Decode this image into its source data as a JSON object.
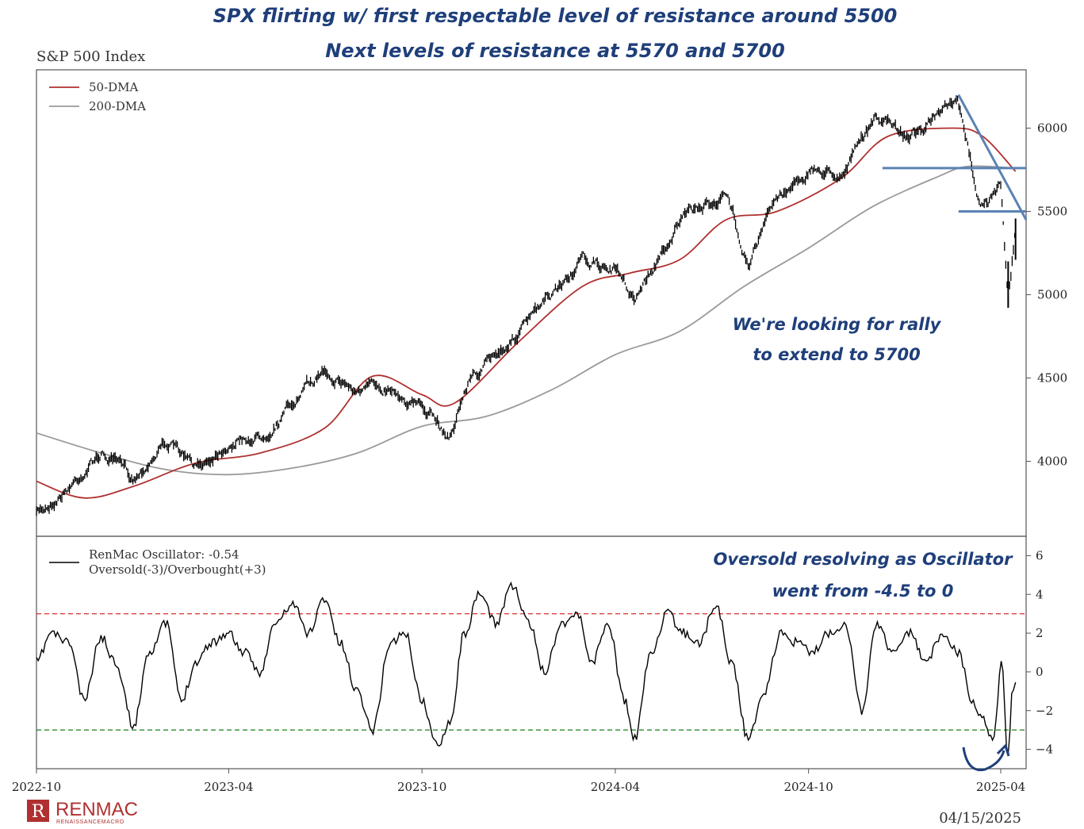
{
  "headline": {
    "line1": "SPX flirting w/ first respectable level of resistance around 5500",
    "line2": "Next levels of resistance at 5570 and 5700"
  },
  "chart_data": [
    {
      "type": "line",
      "title": "S&P 500 Index",
      "x_range": [
        "2022-10-01",
        "2025-04-25"
      ],
      "ylim": [
        3550,
        6350
      ],
      "y_ticks": [
        4000,
        4500,
        5000,
        5500,
        6000
      ],
      "y_tick_labels": [
        "4000",
        "4500",
        "5000",
        "5500",
        "6000"
      ],
      "legend": {
        "placement": "top-left",
        "entries": [
          "50-DMA",
          "200-DMA"
        ]
      },
      "series": [
        {
          "name": "",
          "style": "price-bars",
          "color": "#000000",
          "x": [
            "2022-10-01",
            "2022-11-01",
            "2022-12-01",
            "2023-01-01",
            "2023-02-01",
            "2023-03-01",
            "2023-04-01",
            "2023-05-01",
            "2023-06-01",
            "2023-07-01",
            "2023-08-01",
            "2023-09-01",
            "2023-10-01",
            "2023-10-27",
            "2023-11-15",
            "2023-12-01",
            "2024-01-01",
            "2024-02-01",
            "2024-03-01",
            "2024-04-01",
            "2024-04-19",
            "2024-05-15",
            "2024-06-01",
            "2024-07-15",
            "2024-08-05",
            "2024-09-01",
            "2024-10-01",
            "2024-11-01",
            "2024-12-05",
            "2025-01-01",
            "2025-02-19",
            "2025-03-13",
            "2025-04-01",
            "2025-04-08",
            "2025-04-15"
          ],
          "values": [
            3680,
            3850,
            4050,
            3900,
            4130,
            3950,
            4120,
            4150,
            4350,
            4560,
            4420,
            4460,
            4320,
            4150,
            4500,
            4580,
            4780,
            4990,
            5200,
            5150,
            4980,
            5250,
            5450,
            5600,
            5200,
            5580,
            5750,
            5730,
            6070,
            5950,
            6140,
            5530,
            5640,
            4950,
            5400
          ]
        },
        {
          "name": "50-DMA",
          "color": "#b03030",
          "x": [
            "2022-10-01",
            "2022-11-15",
            "2023-01-01",
            "2023-03-01",
            "2023-05-01",
            "2023-07-01",
            "2023-08-15",
            "2023-10-01",
            "2023-11-01",
            "2024-01-01",
            "2024-03-01",
            "2024-04-15",
            "2024-06-01",
            "2024-07-15",
            "2024-09-01",
            "2024-11-01",
            "2024-12-15",
            "2025-02-15",
            "2025-03-15",
            "2025-04-15"
          ],
          "values": [
            3880,
            3780,
            3850,
            3990,
            4050,
            4200,
            4510,
            4400,
            4350,
            4720,
            5050,
            5130,
            5210,
            5450,
            5500,
            5700,
            5950,
            6000,
            5950,
            5740
          ]
        },
        {
          "name": "200-DMA",
          "color": "#9a9a9a",
          "x": [
            "2022-10-01",
            "2022-12-01",
            "2023-02-01",
            "2023-04-01",
            "2023-06-01",
            "2023-08-01",
            "2023-10-01",
            "2023-12-01",
            "2024-02-01",
            "2024-04-01",
            "2024-06-01",
            "2024-08-01",
            "2024-10-01",
            "2024-12-01",
            "2025-02-01",
            "2025-03-01",
            "2025-04-15"
          ],
          "values": [
            4170,
            4050,
            3950,
            3920,
            3960,
            4050,
            4210,
            4270,
            4430,
            4640,
            4780,
            5050,
            5280,
            5530,
            5710,
            5770,
            5760
          ]
        }
      ],
      "annotations": [
        {
          "kind": "hline",
          "y": 5760,
          "x0": "2024-12-10",
          "x1": "2025-04-25",
          "color": "#5a82b4"
        },
        {
          "kind": "hline",
          "y": 5500,
          "x0": "2025-02-20",
          "x1": "2025-04-25",
          "color": "#5a82b4"
        },
        {
          "kind": "trendline",
          "x0": "2025-02-20",
          "y0": 6200,
          "x1": "2025-04-25",
          "y1": 5450,
          "color": "#5a82b4"
        }
      ],
      "note": {
        "line1": "We're looking for rally",
        "line2": "to extend to 5700"
      }
    },
    {
      "type": "line",
      "ylim": [
        -5.0,
        7.0
      ],
      "y_ticks": [
        -4,
        -2,
        0,
        2,
        4,
        6
      ],
      "y_tick_labels": [
        "−4",
        "−2",
        "0",
        "2",
        "4",
        "6"
      ],
      "legend": {
        "placement": "top-left",
        "entries": [
          "RenMac Oscillator: -0.54",
          "Oversold(-3)/Overbought(+3)"
        ]
      },
      "reference_lines": [
        {
          "y": 3,
          "color": "#e04040",
          "style": "dashed"
        },
        {
          "y": -3,
          "color": "#2e8b2e",
          "style": "dashed"
        }
      ],
      "series": [
        {
          "name": "RenMac Oscillator",
          "color": "#000000",
          "x": [
            "2022-10-01",
            "2022-10-15",
            "2022-11-01",
            "2022-11-15",
            "2022-12-01",
            "2022-12-15",
            "2023-01-01",
            "2023-01-15",
            "2023-02-01",
            "2023-02-15",
            "2023-03-01",
            "2023-03-15",
            "2023-04-01",
            "2023-04-15",
            "2023-05-01",
            "2023-05-15",
            "2023-06-01",
            "2023-06-15",
            "2023-07-01",
            "2023-07-15",
            "2023-08-01",
            "2023-08-15",
            "2023-09-01",
            "2023-09-15",
            "2023-10-01",
            "2023-10-15",
            "2023-10-28",
            "2023-11-10",
            "2023-11-25",
            "2023-12-10",
            "2023-12-25",
            "2024-01-10",
            "2024-01-25",
            "2024-02-10",
            "2024-02-25",
            "2024-03-10",
            "2024-03-25",
            "2024-04-10",
            "2024-04-19",
            "2024-05-05",
            "2024-05-20",
            "2024-06-05",
            "2024-06-20",
            "2024-07-05",
            "2024-07-20",
            "2024-08-05",
            "2024-08-20",
            "2024-09-05",
            "2024-09-20",
            "2024-10-05",
            "2024-10-20",
            "2024-11-05",
            "2024-11-20",
            "2024-12-05",
            "2024-12-20",
            "2025-01-05",
            "2025-01-20",
            "2025-02-05",
            "2025-02-20",
            "2025-03-05",
            "2025-03-15",
            "2025-03-25",
            "2025-04-02",
            "2025-04-08",
            "2025-04-12",
            "2025-04-15"
          ],
          "values": [
            0.5,
            2.0,
            1.5,
            -1.5,
            1.8,
            0.5,
            -2.8,
            1.0,
            2.5,
            -1.5,
            0.5,
            1.5,
            2.0,
            1.0,
            0.0,
            2.5,
            3.5,
            2.0,
            3.8,
            1.5,
            -1.0,
            -3.0,
            1.5,
            2.0,
            -1.5,
            -3.8,
            -2.5,
            2.0,
            4.0,
            2.5,
            4.5,
            2.5,
            0.0,
            2.5,
            3.0,
            0.5,
            2.5,
            -1.5,
            -3.5,
            1.0,
            3.0,
            2.0,
            1.5,
            3.5,
            0.5,
            -3.5,
            -1.0,
            2.0,
            1.5,
            1.0,
            2.0,
            2.5,
            -2.0,
            2.5,
            1.0,
            2.0,
            0.5,
            2.0,
            1.0,
            -1.5,
            -2.5,
            -3.5,
            0.5,
            -4.5,
            -0.8,
            -0.54
          ]
        }
      ],
      "note": {
        "line1": "Oversold resolving as Oscillator",
        "line2": "went from -4.5 to 0"
      }
    }
  ],
  "x_axis": {
    "ticks": [
      "2022-10-01",
      "2023-04-01",
      "2023-10-01",
      "2024-04-01",
      "2024-10-01",
      "2025-04-01"
    ],
    "tick_labels": [
      "2022-10",
      "2023-04",
      "2023-10",
      "2024-04",
      "2024-10",
      "2025-04"
    ]
  },
  "branding": {
    "logo_mark": "R",
    "logo_text": "RENMAC",
    "logo_subtext": "RENAISSANCEMACRO",
    "date": "04/15/2025"
  },
  "colors": {
    "annotation_text": "#1f3f7a",
    "annotation_lines": "#5a82b4",
    "dma50": "#b03030",
    "dma200": "#9a9a9a",
    "logo": "#b03030"
  }
}
